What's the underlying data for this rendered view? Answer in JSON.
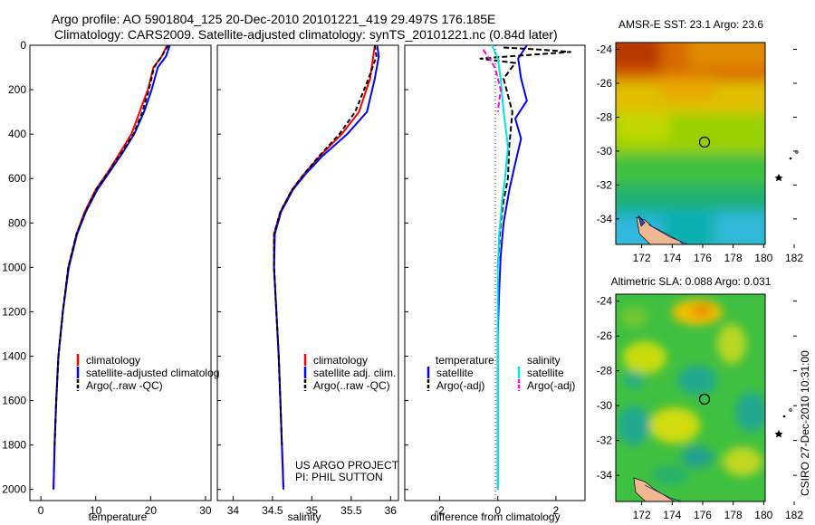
{
  "title": {
    "line1": "Argo profile: AO 5901804_125 20-Dec-2010 20101221_419 29.497S 176.185E",
    "line2": "Climatology: CARS2009. Satellite-adjusted climatology: synTS_20101221.nc (0.84d later)"
  },
  "colors": {
    "climatology": "#ff0000",
    "satellite": "#0000ff",
    "argo": "#000000",
    "salinity_satellite": "#00e5e5",
    "salinity_argo": "#ff00ff"
  },
  "chart_data": [
    {
      "id": "temperature",
      "type": "line",
      "xlabel": "temperature",
      "ylabel": "",
      "xlim": [
        -2,
        31
      ],
      "ylim": [
        0,
        2050
      ],
      "y_reversed": true,
      "xticks": [
        0,
        10,
        20,
        30
      ],
      "yticks": [
        0,
        200,
        400,
        600,
        800,
        1000,
        1200,
        1400,
        1600,
        1800,
        2000
      ],
      "legend_labels": [
        "climatology",
        "satellite-adjusted climatolog",
        "Argo(..raw -QC)"
      ],
      "series": [
        {
          "name": "climatology",
          "color": "#ff0000",
          "dash": "",
          "x": [
            23.0,
            22.0,
            20.5,
            19.5,
            18.0,
            16.5,
            14.5,
            12.5,
            10.0,
            8.0,
            6.5,
            5.0,
            4.0,
            3.2,
            2.8,
            2.5,
            2.3
          ],
          "y": [
            0,
            50,
            100,
            200,
            300,
            400,
            480,
            560,
            650,
            750,
            850,
            1000,
            1200,
            1400,
            1600,
            1800,
            2000
          ]
        },
        {
          "name": "satellite-adjusted climatolog",
          "color": "#0000ff",
          "dash": "",
          "x": [
            23.5,
            22.8,
            21.3,
            20.2,
            18.8,
            17.0,
            15.0,
            12.8,
            10.3,
            8.2,
            6.6,
            5.1,
            4.0,
            3.2,
            2.8,
            2.5,
            2.3
          ],
          "y": [
            0,
            50,
            100,
            200,
            300,
            400,
            480,
            560,
            650,
            750,
            850,
            1000,
            1200,
            1400,
            1600,
            1800,
            2000
          ]
        },
        {
          "name": "Argo(..raw -QC)",
          "color": "#000000",
          "dash": "5,3",
          "x": [
            23.2,
            22.0,
            20.6,
            19.7,
            18.5,
            16.9,
            14.8,
            12.6,
            10.1,
            8.1,
            6.5,
            5.0,
            4.0,
            3.2,
            2.8,
            2.5
          ],
          "y": [
            0,
            50,
            100,
            200,
            300,
            400,
            480,
            560,
            650,
            750,
            850,
            1000,
            1200,
            1400,
            1600,
            1800
          ]
        }
      ]
    },
    {
      "id": "salinity",
      "type": "line",
      "xlabel": "salinity",
      "ylabel": "",
      "xlim": [
        33.8,
        36.1
      ],
      "ylim": [
        0,
        2050
      ],
      "y_reversed": true,
      "xticks": [
        34,
        34.5,
        35,
        35.5,
        36
      ],
      "legend_labels": [
        "climatology",
        "satellite adj. clim.",
        "Argo(..raw -QC)"
      ],
      "annotations": [
        "US ARGO PROJECT",
        "PI: PHIL SUTTON"
      ],
      "series": [
        {
          "name": "climatology",
          "color": "#ff0000",
          "dash": "",
          "x": [
            35.8,
            35.78,
            35.74,
            35.6,
            35.38,
            35.1,
            34.9,
            34.75,
            34.6,
            34.52,
            34.52,
            34.55,
            34.58,
            34.6,
            34.62,
            34.63,
            34.64
          ],
          "y": [
            0,
            50,
            150,
            300,
            400,
            500,
            580,
            650,
            750,
            850,
            1000,
            1200,
            1400,
            1600,
            1800,
            1900,
            2000
          ]
        },
        {
          "name": "satellite adj. clim.",
          "color": "#0000ff",
          "dash": "",
          "x": [
            35.83,
            35.85,
            35.8,
            35.7,
            35.45,
            35.13,
            34.92,
            34.76,
            34.61,
            34.53,
            34.52,
            34.55,
            34.58,
            34.6,
            34.62,
            34.63,
            34.64
          ],
          "y": [
            0,
            50,
            150,
            300,
            400,
            500,
            580,
            650,
            750,
            850,
            1000,
            1200,
            1400,
            1600,
            1800,
            1900,
            2000
          ]
        },
        {
          "name": "Argo(..raw -QC)",
          "color": "#000000",
          "dash": "5,3",
          "x": [
            35.8,
            35.82,
            35.72,
            35.55,
            35.35,
            35.09,
            34.9,
            34.75,
            34.6,
            34.52,
            34.52,
            34.55,
            34.58,
            34.6,
            34.62
          ],
          "y": [
            0,
            50,
            150,
            300,
            400,
            500,
            580,
            650,
            750,
            850,
            1000,
            1200,
            1400,
            1600,
            1800
          ]
        }
      ]
    },
    {
      "id": "difference",
      "type": "line",
      "xlabel": "difference from climatology",
      "ylabel": "",
      "xlim": [
        -3.2,
        3.0
      ],
      "ylim": [
        0,
        2050
      ],
      "y_reversed": true,
      "xticks": [
        -2,
        0,
        2
      ],
      "legend_headers": [
        "temperature",
        "salinity"
      ],
      "legend_labels": [
        "satellite",
        "Argo(-adj)",
        "satellite",
        "Argo(-adj)"
      ],
      "series": [
        {
          "name": "temperature satellite",
          "color": "#0000ff",
          "dash": "",
          "x": [
            1.0,
            0.7,
            0.8,
            1.0,
            0.6,
            0.8,
            0.55,
            0.4,
            0.2,
            0.1,
            0.05,
            0.0,
            0.0,
            0.0,
            0.0
          ],
          "y": [
            0,
            60,
            150,
            250,
            330,
            420,
            560,
            650,
            800,
            950,
            1100,
            1300,
            1500,
            1700,
            2000
          ]
        },
        {
          "name": "temperature Argo(-adj)",
          "color": "#000000",
          "dash": "6,3",
          "x": [
            0.2,
            1.5,
            2.5,
            0.4,
            -0.6,
            0.6,
            0.2,
            0.5,
            0.4,
            0.35,
            0.2,
            0.1,
            0.05,
            0.0
          ],
          "y": [
            10,
            20,
            30,
            50,
            60,
            80,
            150,
            300,
            450,
            600,
            700,
            800,
            900,
            1000
          ]
        },
        {
          "name": "salinity satellite",
          "color": "#00e5e5",
          "dash": "",
          "x": [
            -0.2,
            0.0,
            0.1,
            0.2,
            0.3,
            0.35,
            0.25,
            0.15,
            0.05,
            0.0,
            0.0,
            0.0,
            0.0
          ],
          "y": [
            0,
            60,
            150,
            300,
            400,
            460,
            600,
            700,
            850,
            1000,
            1300,
            1600,
            2000
          ]
        },
        {
          "name": "salinity Argo(-adj)",
          "color": "#ff00ff",
          "dash": "6,3",
          "x": [
            -0.5,
            -0.3,
            -0.1,
            0.0,
            0.1,
            0.05,
            0.0
          ],
          "y": [
            20,
            60,
            100,
            150,
            200,
            250,
            300
          ]
        }
      ]
    },
    {
      "id": "sst_map",
      "type": "heatmap",
      "title": "AMSR-E SST: 23.1 Argo: 23.6",
      "xlim": [
        170.3,
        180.1
      ],
      "ylim": [
        -35.5,
        -23.6
      ],
      "xticks": [
        172,
        174,
        176,
        178,
        180,
        182
      ],
      "yticks": [
        -24,
        -26,
        -28,
        -30,
        -32,
        -34
      ],
      "argo_position": {
        "lon": 176.185,
        "lat": -29.497
      }
    },
    {
      "id": "sla_map",
      "type": "heatmap",
      "title": "Altimetric SLA: 0.088 Argo: 0.031",
      "xlim": [
        170.3,
        180.1
      ],
      "ylim": [
        -35.5,
        -23.6
      ],
      "xticks": [
        172,
        174,
        176,
        178,
        180,
        182
      ],
      "yticks": [
        -24,
        -26,
        -28,
        -30,
        -32,
        -34
      ],
      "argo_position": {
        "lon": 176.185,
        "lat": -29.497
      }
    }
  ],
  "side_text": "CSIRO 27-Dec-2010 10:31:00"
}
